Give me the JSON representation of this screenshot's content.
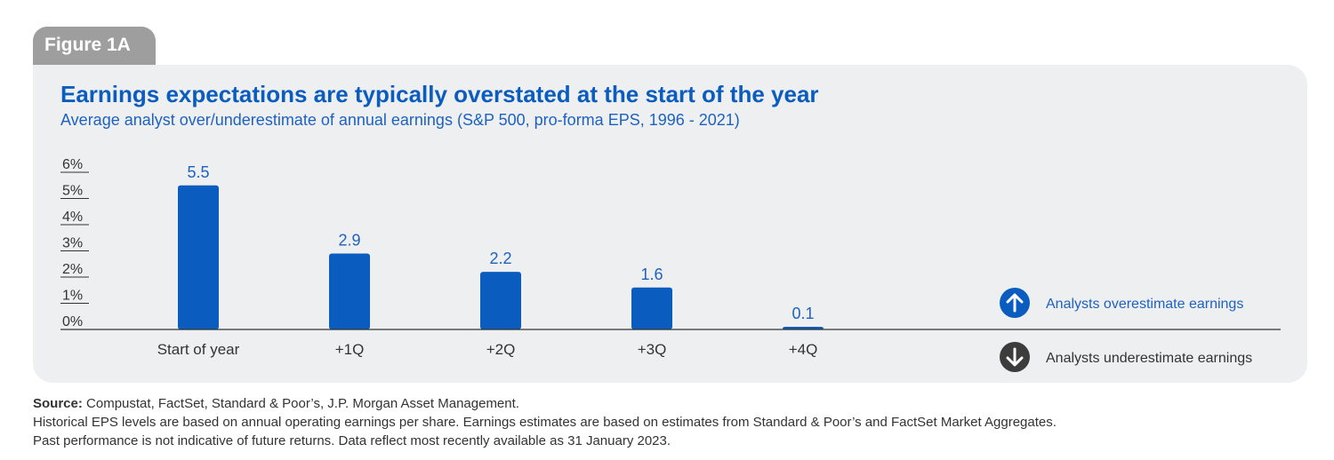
{
  "figure_label": "Figure 1A",
  "chart_data": {
    "type": "bar",
    "title": "Earnings expectations are typically overstated at the start of the year",
    "subtitle": "Average analyst over/underestimate of annual earnings (S&P 500, pro-forma EPS, 1996 - 2021)",
    "categories": [
      "Start of year",
      "+1Q",
      "+2Q",
      "+3Q",
      "+4Q"
    ],
    "values": [
      5.5,
      2.9,
      2.2,
      1.6,
      0.1
    ],
    "data_labels": [
      "5.5",
      "2.9",
      "2.2",
      "1.6",
      "0.1"
    ],
    "y_ticks": [
      0,
      1,
      2,
      3,
      4,
      5,
      6
    ],
    "y_tick_labels": [
      "0%",
      "1%",
      "2%",
      "3%",
      "4%",
      "5%",
      "6%"
    ],
    "ylim": [
      0,
      6
    ],
    "grid": false,
    "bar_color": "#0a5cbf",
    "legend": [
      {
        "label": "Analysts overestimate earnings",
        "icon": "arrow-up-circle-icon",
        "color": "#0a5cbf"
      },
      {
        "label": "Analysts underestimate earnings",
        "icon": "arrow-down-circle-icon",
        "color": "#3c3c3c"
      }
    ]
  },
  "footer": {
    "source_label": "Source:",
    "source_text": "Compustat, FactSet, Standard & Poor’s, J.P. Morgan Asset Management.",
    "note1": "Historical EPS levels are based on annual operating earnings per share. Earnings estimates are based on estimates from Standard & Poor’s and FactSet Market Aggregates.",
    "note2": "Past performance is not indicative of future returns. Data reflect most recently available as 31 January 2023."
  }
}
